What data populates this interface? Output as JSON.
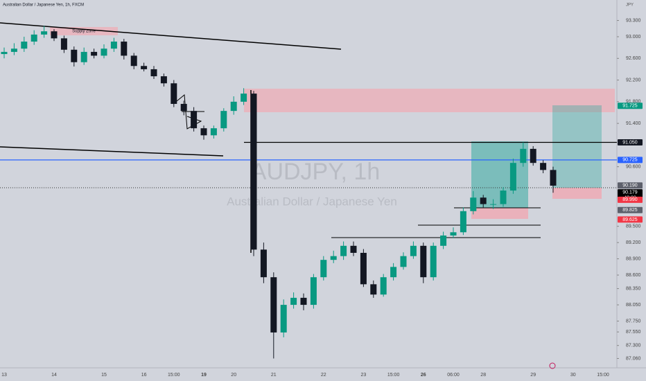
{
  "chart_data": {
    "type": "candlestick",
    "title": "Australian Dollar / Japanese Yen, 1h, FXCM",
    "y_label": "JPY",
    "annotations": [
      "AUDJPY, 1h",
      "Australian Dollar / Japanese Yen",
      "Supply Zone"
    ],
    "countdown": "42:08",
    "categories": [
      "13",
      null,
      null,
      null,
      null,
      "14",
      null,
      null,
      null,
      null,
      "15",
      null,
      null,
      null,
      "16",
      null,
      null,
      "15:00",
      null,
      null,
      "19",
      null,
      null,
      "20",
      null,
      null,
      null,
      "21",
      null,
      null,
      null,
      null,
      "22",
      null,
      null,
      null,
      "23",
      null,
      null,
      "15:00",
      null,
      null,
      "26",
      null,
      null,
      "06:00",
      null,
      null,
      "28",
      null,
      null,
      null,
      null,
      "29",
      null,
      null,
      null,
      "30",
      null,
      null,
      "15:00"
    ],
    "series": [
      {
        "up_color": "#089981",
        "down_color": "#131722",
        "open": [
          92.68,
          92.72,
          92.78,
          92.91,
          93.04,
          93.1,
          92.97,
          92.76,
          92.53,
          92.72,
          92.65,
          92.78,
          92.91,
          92.65,
          92.46,
          92.4,
          92.27,
          92.14,
          91.76,
          91.63,
          91.31,
          91.18,
          91.31,
          91.63,
          91.8,
          91.95,
          89.07,
          88.56,
          87.54,
          88.05,
          88.18,
          88.05,
          88.56,
          88.88,
          88.95,
          89.14,
          89.01,
          88.43,
          88.24,
          88.56,
          88.75,
          88.95,
          89.14,
          88.56,
          89.14,
          89.33,
          89.39,
          89.78,
          90.03,
          89.91,
          89.91,
          90.16,
          90.67,
          90.93,
          90.67,
          90.54,
          null,
          null,
          null,
          null,
          null
        ],
        "high": [
          92.8,
          92.88,
          93.0,
          93.12,
          93.2,
          93.14,
          93.02,
          92.82,
          92.8,
          92.78,
          92.86,
          92.98,
          92.96,
          92.7,
          92.52,
          92.46,
          92.32,
          92.2,
          91.82,
          91.7,
          91.36,
          91.36,
          91.68,
          91.9,
          92.05,
          92.0,
          89.2,
          88.65,
          88.15,
          88.28,
          88.26,
          88.62,
          88.95,
          89.05,
          89.22,
          89.22,
          89.08,
          88.5,
          88.62,
          88.82,
          89.02,
          89.22,
          89.2,
          89.2,
          89.4,
          89.48,
          89.85,
          90.15,
          90.08,
          90.0,
          90.22,
          90.75,
          91.05,
          90.98,
          90.72,
          90.6,
          null,
          null,
          null,
          null,
          null
        ],
        "low": [
          92.6,
          92.66,
          92.72,
          92.85,
          92.98,
          92.92,
          92.7,
          92.45,
          92.48,
          92.6,
          92.6,
          92.72,
          92.58,
          92.4,
          92.36,
          92.22,
          92.08,
          91.7,
          91.55,
          91.25,
          91.1,
          91.12,
          91.25,
          91.56,
          91.74,
          88.95,
          88.45,
          87.06,
          87.45,
          87.98,
          87.95,
          87.98,
          88.5,
          88.82,
          88.88,
          88.95,
          88.38,
          88.18,
          88.2,
          88.5,
          88.7,
          88.9,
          88.45,
          88.5,
          89.08,
          89.28,
          89.34,
          89.72,
          89.85,
          89.82,
          89.86,
          90.1,
          90.6,
          90.62,
          90.48,
          90.12,
          null,
          null,
          null,
          null,
          null
        ],
        "close": [
          92.72,
          92.78,
          92.91,
          93.04,
          93.1,
          92.97,
          92.76,
          92.53,
          92.72,
          92.65,
          92.78,
          92.91,
          92.65,
          92.46,
          92.4,
          92.27,
          92.14,
          91.76,
          91.63,
          91.31,
          91.18,
          91.31,
          91.63,
          91.8,
          91.95,
          89.07,
          88.56,
          87.54,
          88.05,
          88.18,
          88.05,
          88.56,
          88.88,
          88.95,
          89.14,
          89.01,
          88.43,
          88.24,
          88.56,
          88.75,
          88.95,
          89.14,
          88.56,
          89.14,
          89.33,
          89.39,
          89.78,
          90.03,
          89.91,
          89.91,
          90.16,
          90.67,
          90.93,
          90.67,
          90.54,
          90.25,
          null,
          null,
          null,
          null,
          null
        ]
      }
    ],
    "ylim": [
      86.887,
      93.678
    ],
    "yticks": [
      {
        "value": 93.3,
        "label": "93.300"
      },
      {
        "value": 93.0,
        "label": "93.000"
      },
      {
        "value": 92.6,
        "label": "92.600"
      },
      {
        "value": 92.2,
        "label": "92.200"
      },
      {
        "value": 91.8,
        "label": "91.800"
      },
      {
        "value": 91.4,
        "label": "91.400"
      },
      {
        "value": 90.6,
        "label": "90.600"
      },
      {
        "value": 89.5,
        "label": "89.500"
      },
      {
        "value": 89.2,
        "label": "89.200"
      },
      {
        "value": 88.9,
        "label": "88.900"
      },
      {
        "value": 88.6,
        "label": "88.600"
      },
      {
        "value": 88.35,
        "label": "88.350"
      },
      {
        "value": 88.05,
        "label": "88.050"
      },
      {
        "value": 87.75,
        "label": "87.750"
      },
      {
        "value": 87.55,
        "label": "87.550"
      },
      {
        "value": 87.3,
        "label": "87.300"
      },
      {
        "value": 87.06,
        "label": "87.060"
      }
    ],
    "bold_categories": [
      "19",
      "26"
    ],
    "price_labels": [
      {
        "value": 91.725,
        "label": "91.725",
        "color": "#089981"
      },
      {
        "value": 91.05,
        "label": "91.050",
        "color": "#131722"
      },
      {
        "value": 90.725,
        "label": "90.725",
        "color": "#2962ff"
      },
      {
        "value": 90.19,
        "label": "90.190",
        "color": "#5d606b"
      },
      {
        "value": 90.179,
        "label": "90.179",
        "color": "#000000"
      },
      {
        "value": 89.99,
        "label": "89.990",
        "color": "#f23645"
      },
      {
        "value": 89.825,
        "label": "89.825",
        "color": "#5d606b"
      },
      {
        "value": 89.625,
        "label": "89.625",
        "color": "#f23645"
      }
    ],
    "level_lines": [
      {
        "value": 91.05,
        "color": "#000000"
      },
      {
        "value": 90.725,
        "color": "#2962ff"
      }
    ],
    "grid": false
  }
}
